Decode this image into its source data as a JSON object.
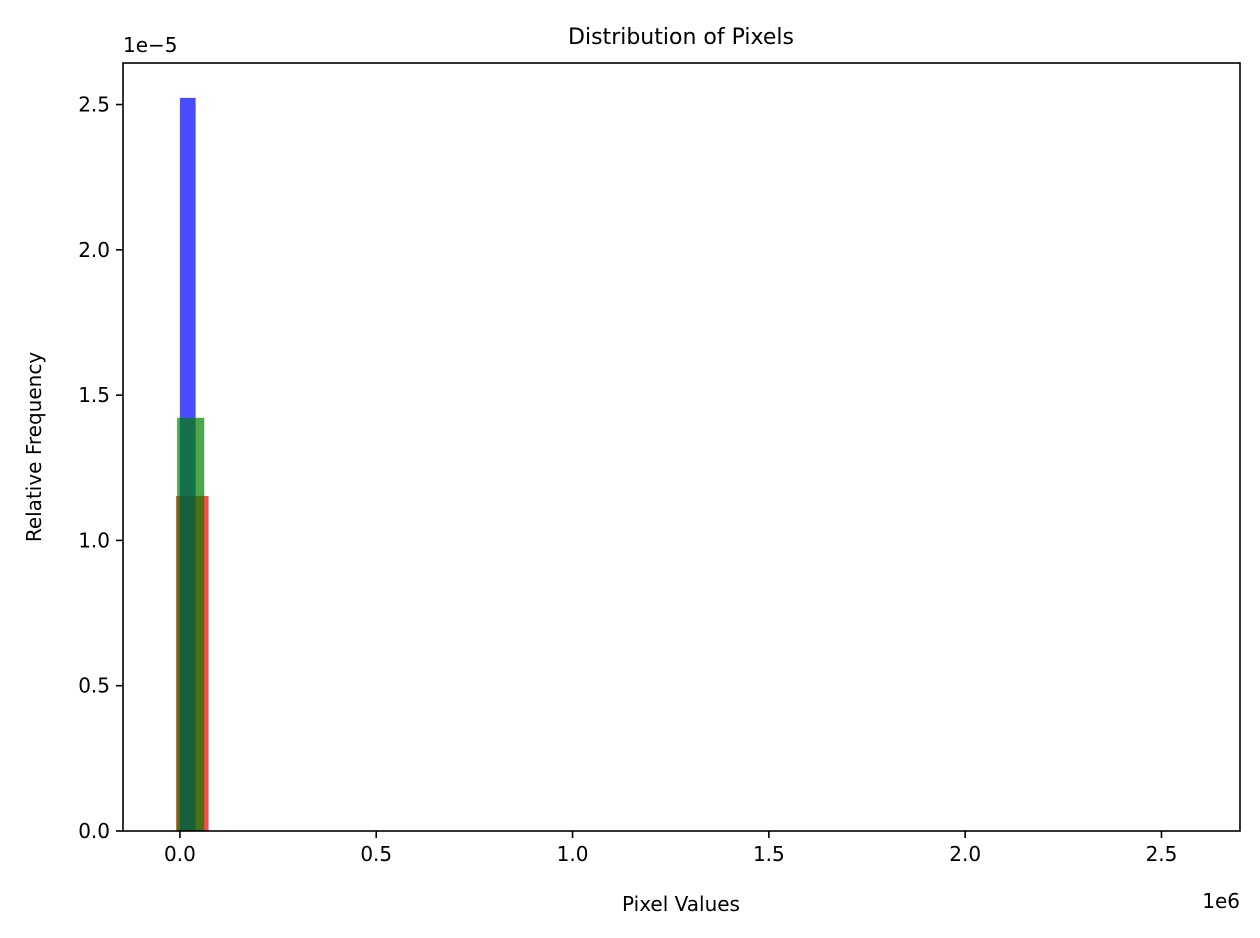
{
  "chart_data": {
    "type": "bar",
    "title": "Distribution of Pixels",
    "xlabel": "Pixel Values",
    "ylabel": "Relative Frequency",
    "x_offset_label": "1e6",
    "y_offset_label": "1e−5",
    "x_scale_factor": 1000000,
    "y_scale_factor": 1e-05,
    "xlim": [
      -145000,
      2700000
    ],
    "ylim": [
      0,
      2.643e-05
    ],
    "x_ticks": [
      0,
      500000,
      1000000,
      1500000,
      2000000,
      2500000
    ],
    "x_tick_labels": [
      "0.0",
      "0.5",
      "1.0",
      "1.5",
      "2.0",
      "2.5"
    ],
    "y_ticks": [
      0,
      5e-06,
      1e-05,
      1.5e-05,
      2e-05,
      2.5e-05
    ],
    "y_tick_labels": [
      "0.0",
      "0.5",
      "1.0",
      "1.5",
      "2.0",
      "2.5"
    ],
    "grid": false,
    "legend": false,
    "series": [
      {
        "color": "#ff0000",
        "alpha": 0.7,
        "bars": [
          {
            "x0": -10000,
            "x1": 73000,
            "value": 1.153e-05
          }
        ]
      },
      {
        "color": "#0000ff",
        "alpha": 0.7,
        "bars": [
          {
            "x0": 0,
            "x1": 40000,
            "value": 2.523e-05
          }
        ]
      },
      {
        "color": "#008000",
        "alpha": 0.7,
        "bars": [
          {
            "x0": -7000,
            "x1": 62000,
            "value": 1.422e-05
          }
        ]
      }
    ]
  }
}
